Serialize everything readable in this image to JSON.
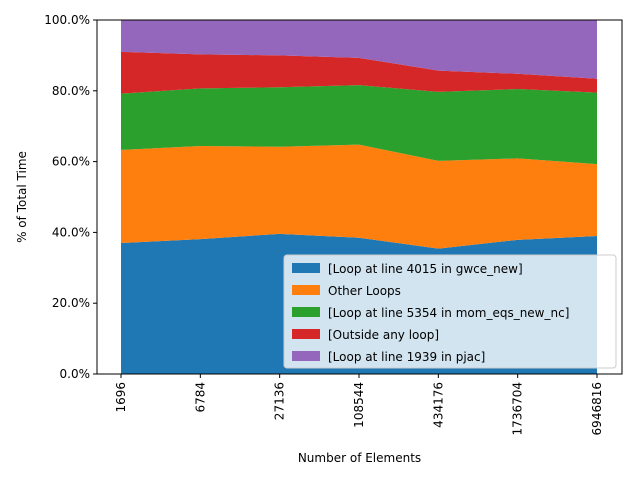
{
  "chart_data": {
    "type": "area",
    "stacked": true,
    "title": "",
    "xlabel": "Number of Elements",
    "ylabel": "% of Total Time",
    "x": [
      "1696",
      "6784",
      "27136",
      "108544",
      "434176",
      "1736704",
      "6946816"
    ],
    "ylim": [
      0,
      100
    ],
    "yticks": [
      "0.0%",
      "20.0%",
      "40.0%",
      "60.0%",
      "80.0%",
      "100.0%"
    ],
    "grid": false,
    "legend_position": "lower-right",
    "series": [
      {
        "name": "[Loop at line 4015 in gwce_new]",
        "color": "#1f77b4",
        "values": [
          37.0,
          38.1,
          39.6,
          38.5,
          35.4,
          37.9,
          39.0
        ]
      },
      {
        "name": "Other Loops",
        "color": "#ff7f0e",
        "values": [
          26.3,
          26.3,
          24.6,
          26.3,
          24.8,
          23.0,
          20.3
        ]
      },
      {
        "name": "[Loop at line 5354 in mom_eqs_new_nc]",
        "color": "#2ca02c",
        "values": [
          15.9,
          16.3,
          16.8,
          16.8,
          19.5,
          19.6,
          20.2
        ]
      },
      {
        "name": "[Outside any loop]",
        "color": "#d62728",
        "values": [
          11.8,
          9.6,
          9.0,
          7.7,
          6.0,
          4.3,
          3.9
        ]
      },
      {
        "name": "[Loop at line 1939 in pjac]",
        "color": "#9467bd",
        "values": [
          9.0,
          9.7,
          10.0,
          10.7,
          14.3,
          15.2,
          16.6
        ]
      }
    ]
  }
}
